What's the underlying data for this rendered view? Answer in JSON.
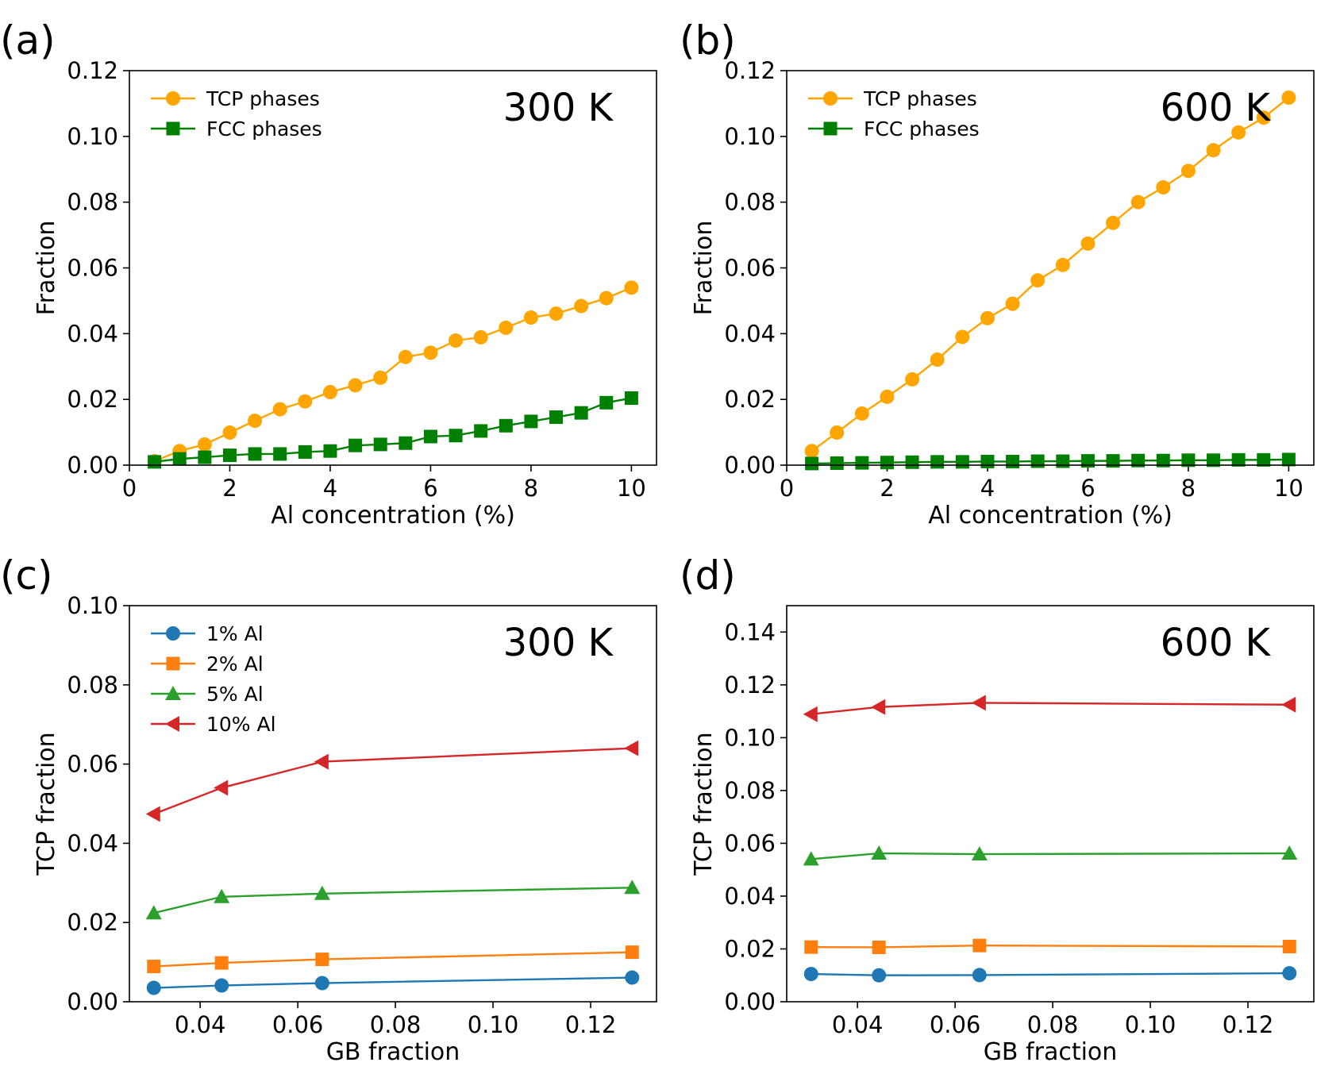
{
  "chart_data": [
    {
      "panel_label": "(a)",
      "type": "line",
      "annotation": "300 K",
      "xlabel": "Al concentration (%)",
      "ylabel": "Fraction",
      "xlim": [
        0,
        10.5
      ],
      "ylim": [
        0,
        0.12
      ],
      "xticks": [
        "0",
        "2",
        "4",
        "6",
        "8",
        "10"
      ],
      "yticks": [
        "0.00",
        "0.02",
        "0.04",
        "0.06",
        "0.08",
        "0.10",
        "0.12"
      ],
      "legend_position": "top-left",
      "x": [
        0.5,
        1.0,
        1.5,
        2.0,
        2.5,
        3.0,
        3.5,
        4.0,
        4.5,
        5.0,
        5.5,
        6.0,
        6.5,
        7.0,
        7.5,
        8.0,
        8.5,
        9.0,
        9.5,
        10.0
      ],
      "series": [
        {
          "name": "TCP phases",
          "color": "#ffa500",
          "marker": "circle",
          "values": [
            0.0012,
            0.0043,
            0.0063,
            0.0099,
            0.0135,
            0.017,
            0.0194,
            0.0222,
            0.0243,
            0.0266,
            0.0329,
            0.0342,
            0.0379,
            0.0389,
            0.0418,
            0.0449,
            0.0461,
            0.0484,
            0.0508,
            0.054
          ]
        },
        {
          "name": "FCC phases",
          "color": "#008000",
          "marker": "square",
          "values": [
            0.001,
            0.0019,
            0.0024,
            0.003,
            0.0034,
            0.0034,
            0.004,
            0.0043,
            0.006,
            0.0063,
            0.0067,
            0.0087,
            0.009,
            0.0104,
            0.012,
            0.0133,
            0.0146,
            0.0159,
            0.019,
            0.0204
          ]
        }
      ]
    },
    {
      "panel_label": "(b)",
      "type": "line",
      "annotation": "600 K",
      "xlabel": "Al concentration (%)",
      "ylabel": "Fraction",
      "xlim": [
        0,
        10.5
      ],
      "ylim": [
        0,
        0.12
      ],
      "xticks": [
        "0",
        "2",
        "4",
        "6",
        "8",
        "10"
      ],
      "yticks": [
        "0.00",
        "0.02",
        "0.04",
        "0.06",
        "0.08",
        "0.10",
        "0.12"
      ],
      "legend_position": "top-left",
      "x": [
        0.5,
        1.0,
        1.5,
        2.0,
        2.5,
        3.0,
        3.5,
        4.0,
        4.5,
        5.0,
        5.5,
        6.0,
        6.5,
        7.0,
        7.5,
        8.0,
        8.5,
        9.0,
        9.5,
        10.0
      ],
      "series": [
        {
          "name": "TCP phases",
          "color": "#ffa500",
          "marker": "circle",
          "values": [
            0.0043,
            0.0099,
            0.0157,
            0.0208,
            0.0261,
            0.0321,
            0.039,
            0.0447,
            0.0491,
            0.0562,
            0.0609,
            0.0674,
            0.0737,
            0.08,
            0.0845,
            0.0895,
            0.0958,
            0.1012,
            0.1057,
            0.1118
          ]
        },
        {
          "name": "FCC phases",
          "color": "#008000",
          "marker": "square",
          "values": [
            0.0005,
            0.0006,
            0.0007,
            0.0008,
            0.0009,
            0.001,
            0.001,
            0.0011,
            0.0011,
            0.0012,
            0.0012,
            0.0013,
            0.0013,
            0.0014,
            0.0014,
            0.0015,
            0.0015,
            0.0016,
            0.0016,
            0.0017
          ]
        }
      ]
    },
    {
      "panel_label": "(c)",
      "type": "line",
      "annotation": "300 K",
      "xlabel": "GB fraction",
      "ylabel": "TCP fraction",
      "xlim": [
        0.0255,
        0.1335
      ],
      "ylim": [
        0,
        0.1
      ],
      "xticks": [
        "0.04",
        "0.06",
        "0.08",
        "0.10",
        "0.12"
      ],
      "yticks": [
        "0.00",
        "0.02",
        "0.04",
        "0.06",
        "0.08",
        "0.10"
      ],
      "legend_position": "top-left",
      "x": [
        0.0305,
        0.0444,
        0.065,
        0.1285
      ],
      "series": [
        {
          "name": "1% Al",
          "color": "#1f77b4",
          "marker": "circle",
          "values": [
            0.0035,
            0.0041,
            0.0047,
            0.0061
          ]
        },
        {
          "name": "2% Al",
          "color": "#ff7f0e",
          "marker": "square",
          "values": [
            0.0089,
            0.0098,
            0.0107,
            0.0125
          ]
        },
        {
          "name": "5% Al",
          "color": "#2ca02c",
          "marker": "triangle-up",
          "values": [
            0.0224,
            0.0265,
            0.0273,
            0.0288
          ]
        },
        {
          "name": "10% Al",
          "color": "#d62728",
          "marker": "triangle-left",
          "values": [
            0.0474,
            0.054,
            0.0606,
            0.064
          ]
        }
      ]
    },
    {
      "panel_label": "(d)",
      "type": "line",
      "annotation": "600 K",
      "xlabel": "GB fraction",
      "ylabel": "TCP fraction",
      "xlim": [
        0.0255,
        0.1335
      ],
      "ylim": [
        0,
        0.15
      ],
      "xticks": [
        "0.04",
        "0.06",
        "0.08",
        "0.10",
        "0.12"
      ],
      "yticks": [
        "0.00",
        "0.02",
        "0.04",
        "0.06",
        "0.08",
        "0.10",
        "0.12",
        "0.14"
      ],
      "x": [
        0.0305,
        0.0444,
        0.065,
        0.1285
      ],
      "series": [
        {
          "color": "#1f77b4",
          "marker": "circle",
          "values": [
            0.0105,
            0.01,
            0.0101,
            0.0108
          ]
        },
        {
          "color": "#ff7f0e",
          "marker": "square",
          "values": [
            0.0207,
            0.0206,
            0.0213,
            0.0209
          ]
        },
        {
          "color": "#2ca02c",
          "marker": "triangle-up",
          "values": [
            0.054,
            0.0562,
            0.0559,
            0.0562
          ]
        },
        {
          "color": "#d62728",
          "marker": "triangle-left",
          "values": [
            0.1089,
            0.1116,
            0.1132,
            0.1125
          ]
        }
      ]
    }
  ]
}
